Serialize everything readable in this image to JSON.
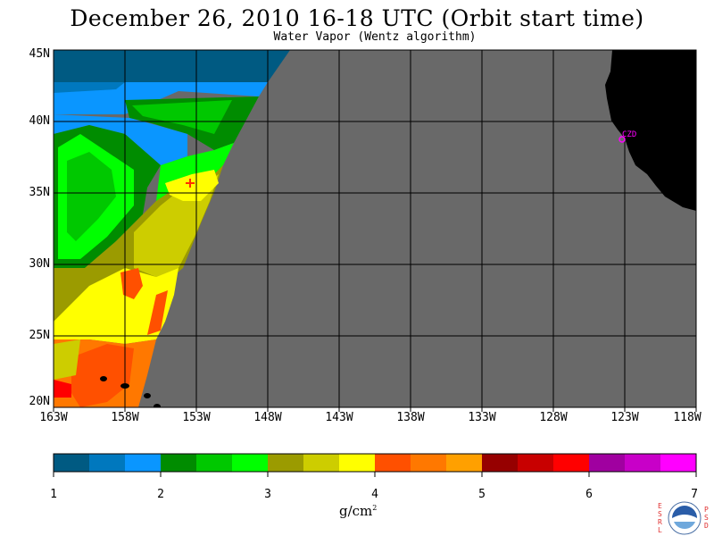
{
  "title": "December 26, 2010  16-18 UTC  (Orbit start time)",
  "subtitle": "Water Vapor (Wentz algorithm)",
  "map": {
    "lat_ticks": [
      "45N",
      "40N",
      "35N",
      "30N",
      "25N",
      "20N"
    ],
    "lon_ticks": [
      "163W",
      "158W",
      "153W",
      "148W",
      "143W",
      "138W",
      "133W",
      "128W",
      "123W",
      "118W"
    ],
    "lat_range": [
      20,
      45
    ],
    "lon_range": [
      -163,
      -118
    ],
    "no_data_color": "#696969",
    "land_color": "#000000",
    "station_label": "CZD",
    "station_color": "#ff00ff"
  },
  "colorbar": {
    "tick_labels": [
      "1",
      "2",
      "3",
      "4",
      "5",
      "6",
      "7"
    ],
    "range": [
      1,
      7
    ],
    "units": "g/cm",
    "units_exp": "2",
    "colors": [
      "#005a82",
      "#0078be",
      "#0a96ff",
      "#008c00",
      "#00c800",
      "#00ff00",
      "#9b9b00",
      "#cdcd00",
      "#ffff00",
      "#ff5000",
      "#ff7800",
      "#ffa000",
      "#960000",
      "#c80000",
      "#ff0000",
      "#a000a0",
      "#c800c8",
      "#ff00ff"
    ]
  },
  "logo": {
    "left_letters": [
      "E",
      "S",
      "R",
      "L"
    ],
    "right_letters": [
      "P",
      "S",
      "D"
    ],
    "center_text": "NOAA"
  }
}
